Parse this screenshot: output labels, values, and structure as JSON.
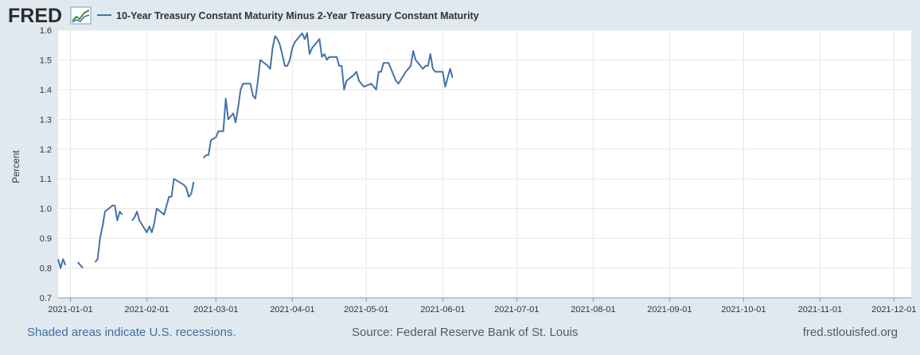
{
  "header": {
    "logo_text": "FRED",
    "series_title": "10-Year Treasury Constant Maturity Minus 2-Year Treasury Constant Maturity"
  },
  "footer": {
    "recession_note": "Shaded areas indicate U.S. recessions.",
    "source": "Source: Federal Reserve Bank of St. Louis",
    "site": "fred.stlouisfed.org"
  },
  "colors": {
    "line": "#4572a7",
    "background": "#e1e9f0",
    "plot_background": "#ffffff",
    "grid": "#e6e6e6",
    "logo": "#2b2b2b"
  },
  "chart_data": {
    "type": "line",
    "title": "10-Year Treasury Constant Maturity Minus 2-Year Treasury Constant Maturity",
    "xlabel": "",
    "ylabel": "Percent",
    "ylim": [
      0.7,
      1.6
    ],
    "xlim": [
      "2020-12-27",
      "2021-12-08"
    ],
    "yticks": [
      "0.7",
      "0.8",
      "0.9",
      "1.0",
      "1.1",
      "1.2",
      "1.3",
      "1.4",
      "1.5",
      "1.6"
    ],
    "xticks": [
      "2021-01-01",
      "2021-02-01",
      "2021-03-01",
      "2021-04-01",
      "2021-05-01",
      "2021-06-01",
      "2021-07-01",
      "2021-08-01",
      "2021-09-01",
      "2021-10-01",
      "2021-11-01",
      "2021-12-01"
    ],
    "grid": true,
    "legend": "top-left",
    "series": [
      {
        "name": "10-Year Treasury Constant Maturity Minus 2-Year Treasury Constant Maturity",
        "segments": [
          [
            [
              "2020-12-27",
              0.83
            ],
            [
              "2020-12-28",
              0.8
            ],
            [
              "2020-12-29",
              0.83
            ],
            [
              "2020-12-30",
              0.81
            ]
          ],
          [
            [
              "2021-01-04",
              0.82
            ],
            [
              "2021-01-05",
              0.81
            ],
            [
              "2021-01-06",
              0.8
            ]
          ],
          [
            [
              "2021-01-11",
              0.82
            ],
            [
              "2021-01-12",
              0.83
            ],
            [
              "2021-01-13",
              0.9
            ],
            [
              "2021-01-14",
              0.94
            ],
            [
              "2021-01-15",
              0.99
            ],
            [
              "2021-01-18",
              1.01
            ],
            [
              "2021-01-19",
              1.01
            ],
            [
              "2021-01-20",
              0.96
            ],
            [
              "2021-01-21",
              0.99
            ],
            [
              "2021-01-22",
              0.98
            ]
          ],
          [
            [
              "2021-01-26",
              0.96
            ],
            [
              "2021-01-27",
              0.97
            ],
            [
              "2021-01-28",
              0.99
            ],
            [
              "2021-01-29",
              0.96
            ],
            [
              "2021-02-01",
              0.92
            ],
            [
              "2021-02-02",
              0.94
            ],
            [
              "2021-02-03",
              0.92
            ],
            [
              "2021-02-04",
              0.95
            ],
            [
              "2021-02-05",
              1.0
            ],
            [
              "2021-02-08",
              0.98
            ],
            [
              "2021-02-09",
              1.01
            ],
            [
              "2021-02-10",
              1.04
            ],
            [
              "2021-02-11",
              1.04
            ],
            [
              "2021-02-12",
              1.1
            ],
            [
              "2021-02-16",
              1.08
            ],
            [
              "2021-02-17",
              1.07
            ],
            [
              "2021-02-18",
              1.04
            ],
            [
              "2021-02-19",
              1.05
            ],
            [
              "2021-02-20",
              1.09
            ]
          ],
          [
            [
              "2021-02-24",
              1.17
            ],
            [
              "2021-02-25",
              1.18
            ],
            [
              "2021-02-26",
              1.18
            ],
            [
              "2021-02-27",
              1.23
            ],
            [
              "2021-03-01",
              1.24
            ],
            [
              "2021-03-02",
              1.26
            ],
            [
              "2021-03-04",
              1.26
            ],
            [
              "2021-03-05",
              1.37
            ],
            [
              "2021-03-06",
              1.3
            ],
            [
              "2021-03-08",
              1.32
            ],
            [
              "2021-03-09",
              1.29
            ],
            [
              "2021-03-10",
              1.34
            ],
            [
              "2021-03-11",
              1.4
            ],
            [
              "2021-03-12",
              1.42
            ],
            [
              "2021-03-15",
              1.42
            ],
            [
              "2021-03-16",
              1.38
            ],
            [
              "2021-03-17",
              1.37
            ],
            [
              "2021-03-18",
              1.43
            ],
            [
              "2021-03-19",
              1.5
            ],
            [
              "2021-03-22",
              1.48
            ],
            [
              "2021-03-23",
              1.47
            ],
            [
              "2021-03-24",
              1.54
            ],
            [
              "2021-03-25",
              1.58
            ],
            [
              "2021-03-26",
              1.57
            ],
            [
              "2021-03-27",
              1.55
            ],
            [
              "2021-03-29",
              1.48
            ],
            [
              "2021-03-30",
              1.48
            ],
            [
              "2021-03-31",
              1.5
            ],
            [
              "2021-04-01",
              1.54
            ],
            [
              "2021-04-02",
              1.56
            ],
            [
              "2021-04-05",
              1.59
            ],
            [
              "2021-04-06",
              1.57
            ],
            [
              "2021-04-07",
              1.59
            ],
            [
              "2021-04-08",
              1.52
            ],
            [
              "2021-04-09",
              1.54
            ],
            [
              "2021-04-12",
              1.57
            ],
            [
              "2021-04-13",
              1.51
            ],
            [
              "2021-04-14",
              1.52
            ],
            [
              "2021-04-15",
              1.5
            ],
            [
              "2021-04-16",
              1.51
            ],
            [
              "2021-04-19",
              1.51
            ],
            [
              "2021-04-20",
              1.48
            ],
            [
              "2021-04-21",
              1.48
            ],
            [
              "2021-04-22",
              1.4
            ],
            [
              "2021-04-23",
              1.43
            ],
            [
              "2021-04-26",
              1.45
            ],
            [
              "2021-04-27",
              1.46
            ],
            [
              "2021-04-28",
              1.43
            ],
            [
              "2021-04-29",
              1.42
            ],
            [
              "2021-04-30",
              1.41
            ],
            [
              "2021-05-03",
              1.42
            ],
            [
              "2021-05-04",
              1.41
            ],
            [
              "2021-05-05",
              1.4
            ],
            [
              "2021-05-06",
              1.46
            ],
            [
              "2021-05-07",
              1.46
            ],
            [
              "2021-05-08",
              1.49
            ],
            [
              "2021-05-10",
              1.49
            ],
            [
              "2021-05-11",
              1.47
            ],
            [
              "2021-05-12",
              1.45
            ],
            [
              "2021-05-13",
              1.43
            ],
            [
              "2021-05-14",
              1.42
            ],
            [
              "2021-05-17",
              1.46
            ],
            [
              "2021-05-18",
              1.47
            ],
            [
              "2021-05-19",
              1.48
            ],
            [
              "2021-05-20",
              1.53
            ],
            [
              "2021-05-21",
              1.5
            ],
            [
              "2021-05-24",
              1.47
            ],
            [
              "2021-05-25",
              1.48
            ],
            [
              "2021-05-26",
              1.48
            ],
            [
              "2021-05-27",
              1.52
            ],
            [
              "2021-05-28",
              1.47
            ],
            [
              "2021-05-29",
              1.46
            ],
            [
              "2021-06-01",
              1.46
            ],
            [
              "2021-06-02",
              1.41
            ],
            [
              "2021-06-03",
              1.44
            ],
            [
              "2021-06-04",
              1.47
            ],
            [
              "2021-06-05",
              1.44
            ]
          ]
        ]
      }
    ]
  }
}
